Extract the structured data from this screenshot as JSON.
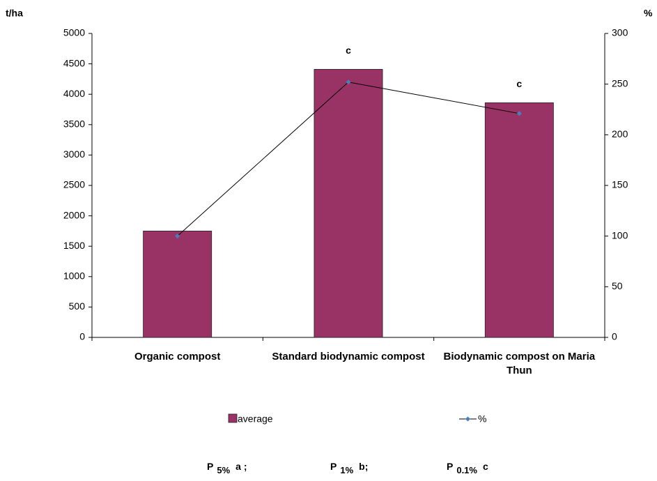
{
  "chart_data": {
    "type": "bar",
    "categories": [
      "Organic compost",
      "Standard biodynamic compost",
      "Biodynamic compost on Maria Thun"
    ],
    "series": [
      {
        "name": "average",
        "type": "bar",
        "color": "#993366",
        "values": [
          1750,
          4410,
          3860
        ]
      },
      {
        "name": "%",
        "type": "line",
        "axis": "y2",
        "color": "#000000",
        "marker_color": "#4a7ebb",
        "values": [
          100,
          252,
          221
        ]
      }
    ],
    "significance": [
      null,
      "c",
      "c"
    ],
    "ylabel": "t/ha",
    "y2label": "%",
    "ylim": [
      0,
      5000
    ],
    "yticks": [
      0,
      500,
      1000,
      1500,
      2000,
      2500,
      3000,
      3500,
      4000,
      4500,
      5000
    ],
    "y2lim": [
      0,
      300
    ],
    "y2ticks": [
      0,
      50,
      100,
      150,
      200,
      250,
      300
    ],
    "grid": false,
    "legend": "bottom",
    "footnote": [
      {
        "label": "P",
        "sub": "5%",
        "letter": "a ;"
      },
      {
        "label": "P",
        "sub": "1%",
        "letter": "b;"
      },
      {
        "label": "P",
        "sub": "0.1%",
        "letter": "c"
      }
    ]
  }
}
